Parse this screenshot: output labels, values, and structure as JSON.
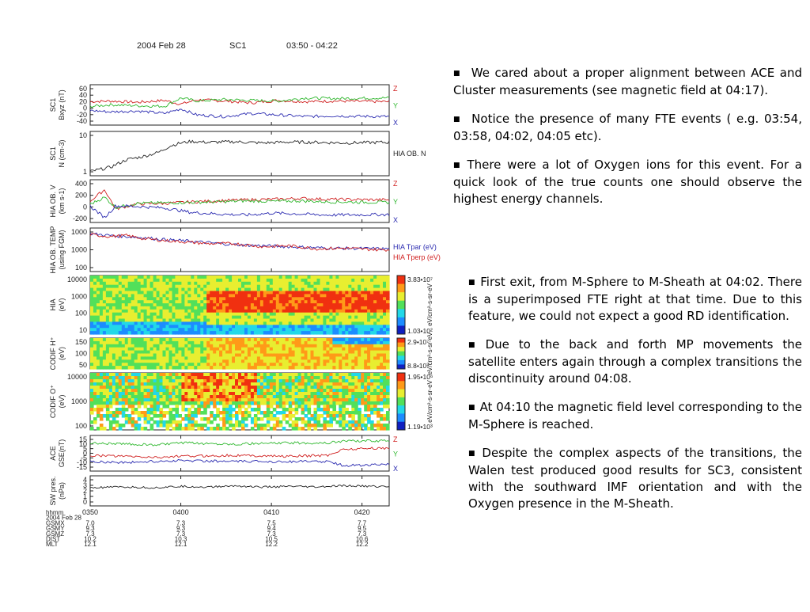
{
  "header": {
    "date": "2004 Feb 28",
    "spacecraft": "SC1",
    "range": "03:50 - 04:22"
  },
  "colors": {
    "red": "#d02020",
    "green": "#2fb82f",
    "blue": "#2a2ab0",
    "black": "#222222"
  },
  "chart_data": [
    {
      "type": "line",
      "panel": "bxyz",
      "ylabel": [
        "SC1",
        "Bxyz (nT)"
      ],
      "ticks": [
        "60",
        "40",
        "20",
        "0",
        "-20",
        "-40"
      ],
      "ylim": [
        -50,
        65
      ],
      "legend": [
        "Z",
        "Y",
        "X"
      ],
      "series": [
        {
          "name": "Z",
          "color": "#d02020",
          "x": [
            3.83,
            3.87,
            3.92,
            3.97,
            4.0,
            4.03,
            4.08,
            4.13,
            4.18,
            4.23,
            4.28,
            4.37
          ],
          "values": [
            18,
            20,
            16,
            22,
            10,
            24,
            20,
            14,
            22,
            18,
            20,
            18
          ]
        },
        {
          "name": "Y",
          "color": "#2fb82f",
          "x": [
            3.83,
            3.87,
            3.92,
            3.97,
            4.0,
            4.03,
            4.08,
            4.13,
            4.18,
            4.23,
            4.28,
            4.37
          ],
          "values": [
            2,
            8,
            5,
            3,
            30,
            20,
            25,
            22,
            20,
            30,
            28,
            30
          ]
        },
        {
          "name": "X",
          "color": "#2a2ab0",
          "x": [
            3.83,
            3.87,
            3.92,
            3.97,
            4.0,
            4.03,
            4.08,
            4.13,
            4.18,
            4.23,
            4.28,
            4.37
          ],
          "values": [
            -10,
            -15,
            -12,
            -20,
            -5,
            -25,
            -30,
            -20,
            -25,
            -30,
            -28,
            -30
          ]
        }
      ]
    },
    {
      "type": "line",
      "panel": "density",
      "ylabel": [
        "SC1",
        "N (cm-3)"
      ],
      "ticks": [
        "10",
        "1"
      ],
      "ylim": [
        0,
        1.3
      ],
      "log": true,
      "annotation": "HIA OB. N",
      "series": [
        {
          "color": "#222222",
          "x": [
            3.83,
            3.87,
            3.9,
            3.93,
            3.96,
            3.98,
            4.0,
            4.02,
            4.05,
            4.1,
            4.15,
            4.2,
            4.25,
            4.3,
            4.37
          ],
          "values": [
            0.05,
            0.2,
            0.45,
            0.55,
            0.7,
            0.9,
            1.0,
            1.05,
            1.02,
            1.04,
            1.0,
            1.03,
            1.02,
            1.0,
            1.02
          ]
        }
      ]
    },
    {
      "type": "line",
      "panel": "velocity",
      "ylabel": [
        "HIA OB. V",
        "(km s-1)"
      ],
      "ticks": [
        "400",
        "200",
        "0",
        "-200"
      ],
      "ylim": [
        -300,
        450
      ],
      "legend": [
        "Z",
        "Y",
        "X"
      ],
      "series": [
        {
          "name": "Z",
          "color": "#d02020",
          "x": [
            3.83,
            3.86,
            3.88,
            3.92,
            3.97,
            4.02,
            4.07,
            4.12,
            4.17,
            4.22,
            4.27,
            4.37
          ],
          "values": [
            50,
            300,
            -80,
            20,
            30,
            60,
            80,
            100,
            110,
            130,
            110,
            100
          ]
        },
        {
          "name": "Y",
          "color": "#2fb82f",
          "x": [
            3.83,
            3.86,
            3.88,
            3.92,
            3.97,
            4.02,
            4.07,
            4.12,
            4.17,
            4.22,
            4.27,
            4.37
          ],
          "values": [
            0,
            150,
            -50,
            30,
            40,
            50,
            60,
            80,
            70,
            80,
            60,
            50
          ]
        },
        {
          "name": "X",
          "color": "#2a2ab0",
          "x": [
            3.83,
            3.86,
            3.88,
            3.92,
            3.97,
            4.02,
            4.07,
            4.12,
            4.17,
            4.22,
            4.27,
            4.37
          ],
          "values": [
            0,
            -250,
            -20,
            -30,
            -60,
            -150,
            -180,
            -200,
            -160,
            -180,
            -200,
            -190
          ]
        }
      ]
    },
    {
      "type": "line",
      "panel": "temperature",
      "ylabel": [
        "HIA OB. TEMP",
        "(using FGM)"
      ],
      "ticks": [
        "1000",
        "1000",
        "100"
      ],
      "ylim": [
        0,
        3.8
      ],
      "log": true,
      "legend": [
        "HIA Tpar (eV)",
        "HIA Tperp (eV)"
      ],
      "series": [
        {
          "name": "HIA Tpar (eV)",
          "color": "#2a2ab0",
          "x": [
            3.83,
            3.87,
            3.9,
            3.93,
            3.97,
            4.0,
            4.05,
            4.1,
            4.15,
            4.2,
            4.25,
            4.3,
            4.37
          ],
          "values": [
            3.5,
            3.3,
            3.2,
            3.1,
            2.9,
            2.8,
            2.6,
            2.4,
            2.3,
            2.2,
            2.1,
            2.05,
            2.0
          ]
        },
        {
          "name": "HIA Tperp (eV)",
          "color": "#d02020",
          "x": [
            3.83,
            3.87,
            3.9,
            3.93,
            3.97,
            4.0,
            4.05,
            4.1,
            4.15,
            4.2,
            4.25,
            4.3,
            4.37
          ],
          "values": [
            3.4,
            3.2,
            3.3,
            3.0,
            2.8,
            2.7,
            2.5,
            2.5,
            2.2,
            2.3,
            2.0,
            2.05,
            1.9
          ]
        }
      ]
    },
    {
      "type": "heatmap",
      "panel": "hia",
      "ylabel": [
        "HIA",
        "(eV)"
      ],
      "ticks": [
        "10000",
        "1000",
        "100",
        "10"
      ],
      "cmax": "3.83•10⁷",
      "cmin": "1.03•10²",
      "unit": "eV/cm²-s-sr-eV"
    },
    {
      "type": "heatmap",
      "panel": "codif-h",
      "ylabel": [
        "CODIF H⁺",
        "(eV)"
      ],
      "ticks": [
        "150",
        "100",
        "50"
      ],
      "cmax": "2.9•10⁷",
      "cmin": "8.8•10³",
      "unit": "eV/cm²-s-sr-eV"
    },
    {
      "type": "heatmap",
      "panel": "codif-o",
      "ylabel": [
        "CODIF O⁺",
        "(eV)"
      ],
      "ticks": [
        "10000",
        "1000",
        "100"
      ],
      "cmax": "1.95•10⁶",
      "cmin": "1.19•10³",
      "unit": "eV/cm²-s-sr-eV"
    },
    {
      "type": "line",
      "panel": "ace",
      "ylabel": [
        "ACE",
        "GSE(nT)"
      ],
      "ticks": [
        "15",
        "10",
        "5",
        "0",
        "-5",
        "-10",
        "-15"
      ],
      "ylim": [
        -15,
        15
      ],
      "legend": [
        "Z",
        "Y",
        "X"
      ],
      "series": [
        {
          "name": "Y",
          "color": "#2fb82f",
          "x": [
            3.83,
            3.9,
            3.95,
            4.0,
            4.1,
            4.2,
            4.27,
            4.3,
            4.37
          ],
          "values": [
            10,
            9,
            8,
            10,
            9,
            10,
            10,
            12,
            12
          ]
        },
        {
          "name": "Z",
          "color": "#d02020",
          "x": [
            3.83,
            3.9,
            3.95,
            4.0,
            4.1,
            4.2,
            4.27,
            4.3,
            4.37
          ],
          "values": [
            -2,
            -3,
            -4,
            -3,
            -2,
            -3,
            -2,
            4,
            5
          ]
        },
        {
          "name": "X",
          "color": "#2a2ab0",
          "x": [
            3.83,
            3.9,
            3.95,
            4.0,
            4.1,
            4.2,
            4.27,
            4.3,
            4.37
          ],
          "values": [
            -8,
            -9,
            -8,
            -7,
            -8,
            -8,
            -8,
            -12,
            -11
          ]
        }
      ]
    },
    {
      "type": "line",
      "panel": "sw-pressure",
      "ylabel": [
        "SW pres.",
        "(nPa)"
      ],
      "ticks": [
        "4",
        "3",
        "2",
        "1",
        "0"
      ],
      "ylim": [
        0,
        4
      ],
      "series": [
        {
          "color": "#222222",
          "x": [
            3.83,
            3.9,
            3.95,
            4.0,
            4.05,
            4.1,
            4.15,
            4.2,
            4.25,
            4.3,
            4.37
          ],
          "values": [
            2.5,
            2.6,
            2.5,
            2.7,
            2.6,
            2.8,
            2.6,
            2.7,
            2.6,
            2.8,
            2.7
          ]
        }
      ]
    }
  ],
  "xaxis": {
    "ticks": [
      "0350",
      "0400",
      "0410",
      "0420"
    ],
    "row_labels": [
      "hhmm",
      "2004 Feb 28",
      "GSMX",
      "GSMY",
      "GSMZ",
      "DIST",
      "MLT"
    ],
    "columns": [
      [
        "7.0",
        "9.3",
        "7.3",
        "10.2",
        "12.1"
      ],
      [
        "7.3",
        "9.3",
        "7.3",
        "10.3",
        "12.1"
      ],
      [
        "7.5",
        "9.4",
        "7.3",
        "10.5",
        "12.2"
      ],
      [
        "7.7",
        "9.5",
        "7.3",
        "10.6",
        "12.2"
      ]
    ]
  },
  "notes_top": [
    "We cared about a proper alignment between ACE and Cluster measurements (see magnetic field at 04:17).",
    "Notice the presence of many FTE events ( e.g. 03:54, 03:58, 04:02,  04:05 etc).",
    "There were a lot of Oxygen ions for this event. For a quick look of the true counts one should observe the highest energy  channels."
  ],
  "notes_bottom": [
    "First exit, from M-Sphere to M-Sheath at 04:02. There is a superimposed FTE right at that time. Due to this feature,  we could not expect a good RD identification.",
    "Due to the back and forth MP movements the satellite enters again through a complex transitions the discontinuity around 04:08.",
    "At 04:10 the magnetic field level corresponding to  the M-Sphere is reached.",
    "Despite the complex aspects of the transitions, the Walen test produced good results for SC3, consistent with the southward IMF orientation and with the Oxygen presence in the M-Sheath."
  ]
}
